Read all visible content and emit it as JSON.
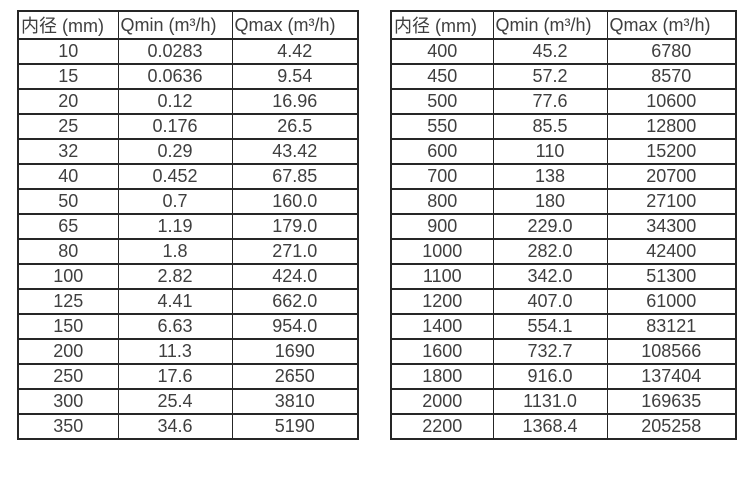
{
  "page": {
    "background_color": "#ffffff",
    "text_color": "#3f3f3f",
    "border_color": "#262626"
  },
  "tables": [
    {
      "name": "flow-rate-table-small-diameters",
      "headers": [
        "内径 (mm)",
        "Qmin (m³/h)",
        "Qmax (m³/h)"
      ],
      "rows": [
        [
          "10",
          "0.0283",
          "4.42"
        ],
        [
          "15",
          "0.0636",
          "9.54"
        ],
        [
          "20",
          "0.12",
          "16.96"
        ],
        [
          "25",
          "0.176",
          "26.5"
        ],
        [
          "32",
          "0.29",
          "43.42"
        ],
        [
          "40",
          "0.452",
          "67.85"
        ],
        [
          "50",
          "0.7",
          "160.0"
        ],
        [
          "65",
          "1.19",
          "179.0"
        ],
        [
          "80",
          "1.8",
          "271.0"
        ],
        [
          "100",
          "2.82",
          "424.0"
        ],
        [
          "125",
          "4.41",
          "662.0"
        ],
        [
          "150",
          "6.63",
          "954.0"
        ],
        [
          "200",
          "11.3",
          "1690"
        ],
        [
          "250",
          "17.6",
          "2650"
        ],
        [
          "300",
          "25.4",
          "3810"
        ],
        [
          "350",
          "34.6",
          "5190"
        ]
      ]
    },
    {
      "name": "flow-rate-table-large-diameters",
      "headers": [
        "内径 (mm)",
        "Qmin (m³/h)",
        "Qmax (m³/h)"
      ],
      "rows": [
        [
          "400",
          "45.2",
          "6780"
        ],
        [
          "450",
          "57.2",
          "8570"
        ],
        [
          "500",
          "77.6",
          "10600"
        ],
        [
          "550",
          "85.5",
          "12800"
        ],
        [
          "600",
          "110",
          "15200"
        ],
        [
          "700",
          "138",
          "20700"
        ],
        [
          "800",
          "180",
          "27100"
        ],
        [
          "900",
          "229.0",
          "34300"
        ],
        [
          "1000",
          "282.0",
          "42400"
        ],
        [
          "1100",
          "342.0",
          "51300"
        ],
        [
          "1200",
          "407.0",
          "61000"
        ],
        [
          "1400",
          "554.1",
          "83121"
        ],
        [
          "1600",
          "732.7",
          "108566"
        ],
        [
          "1800",
          "916.0",
          "137404"
        ],
        [
          "2000",
          "1131.0",
          "169635"
        ],
        [
          "2200",
          "1368.4",
          "205258"
        ]
      ]
    }
  ]
}
